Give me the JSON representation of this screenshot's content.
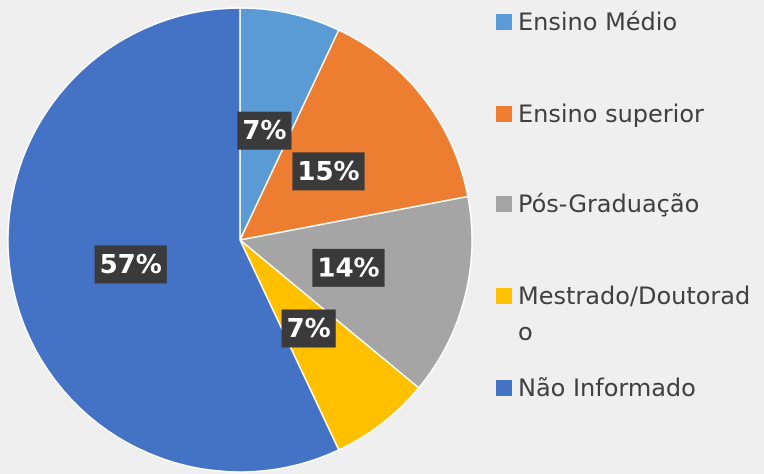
{
  "chart_data": {
    "type": "pie",
    "categories": [
      "Ensino Médio",
      "Ensino superior",
      "Pós-Graduação",
      "Mestrado/Doutorado",
      "Não Informado"
    ],
    "values": [
      7,
      15,
      14,
      7,
      57
    ],
    "value_labels": [
      "7%",
      "15%",
      "14%",
      "7%",
      "57%"
    ],
    "colors": [
      "#5b9bd5",
      "#ed7d31",
      "#a5a5a5",
      "#ffc000",
      "#4472c4"
    ],
    "legend": "right"
  }
}
